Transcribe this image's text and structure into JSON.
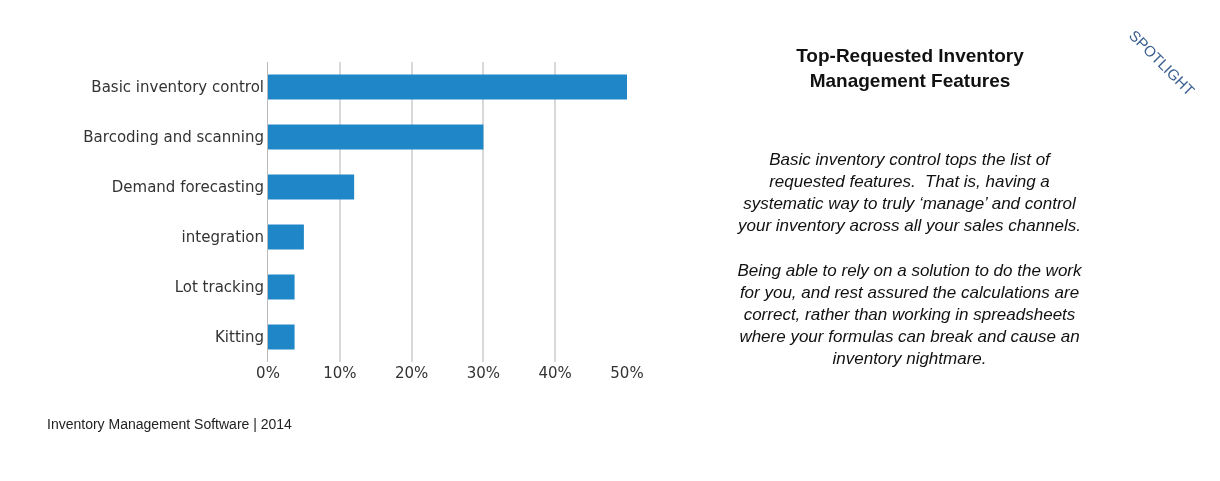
{
  "chart_data": {
    "type": "bar",
    "orientation": "horizontal",
    "title": "Top-Requested Inventory\nManagement Features",
    "categories": [
      "Basic inventory control",
      "Barcoding and scanning",
      "Demand forecasting",
      "integration",
      "Lot tracking",
      "Kitting"
    ],
    "values": [
      50,
      30,
      12,
      5,
      3.7,
      3.7
    ],
    "color": "#1f87c8",
    "xlim": [
      0,
      50
    ],
    "xticks": [
      {
        "value": 0,
        "label": "0%"
      },
      {
        "value": 10,
        "label": "10%"
      },
      {
        "value": 20,
        "label": "20%"
      },
      {
        "value": 30,
        "label": "30%"
      },
      {
        "value": 40,
        "label": "40%"
      },
      {
        "value": 50,
        "label": "50%"
      }
    ],
    "grid": "x",
    "annotations": [
      "Basic inventory control tops the list of\nrequested features.  That is, having a\nsystematic way to truly ‘manage’ and control\nyour inventory across all your sales channels.\n\nBeing able to rely on a solution to do the work\nfor you, and rest assured the calculations are\ncorrect, rather than working in spreadsheets\nwhere your formulas can break and cause an\ninventory nightmare.",
      "Inventory Management Software | 2014",
      "SPOTLIGHT"
    ]
  }
}
